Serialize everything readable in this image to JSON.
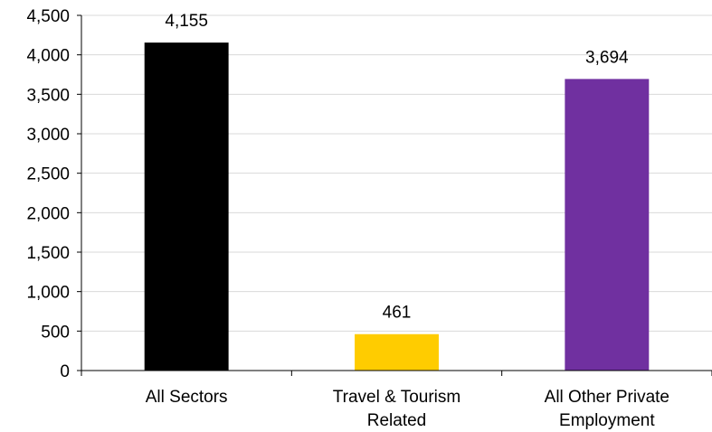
{
  "chart_data": {
    "type": "bar",
    "title": "",
    "xlabel": "",
    "ylabel": "",
    "categories": [
      [
        "All Sectors"
      ],
      [
        "Travel & Tourism",
        "Related"
      ],
      [
        "All Other Private",
        "Employment"
      ]
    ],
    "values": [
      4155,
      461,
      3694
    ],
    "value_labels": [
      "4,155",
      "461",
      "3,694"
    ],
    "colors": [
      "#000000",
      "#ffcc00",
      "#7030a0"
    ],
    "ylim": [
      0,
      4500
    ],
    "yticks": [
      0,
      500,
      1000,
      1500,
      2000,
      2500,
      3000,
      3500,
      4000,
      4500
    ],
    "ytick_labels": [
      "0",
      "500",
      "1,000",
      "1,500",
      "2,000",
      "2,500",
      "3,000",
      "3,500",
      "4,000",
      "4,500"
    ],
    "grid": true,
    "legend": "none"
  }
}
